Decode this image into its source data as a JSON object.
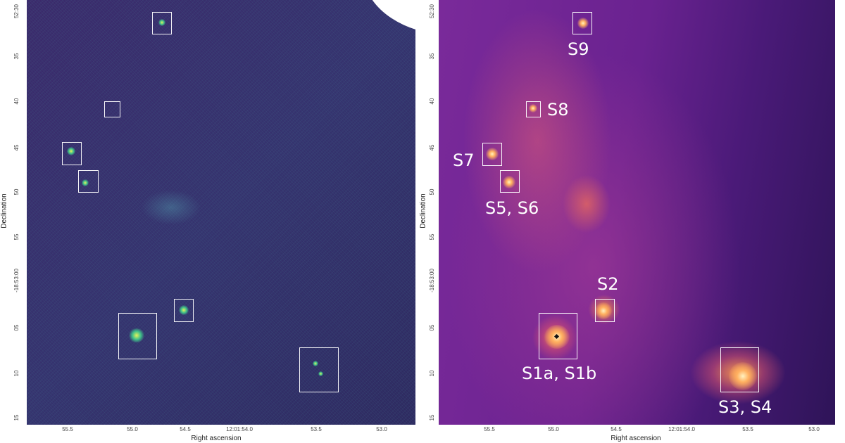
{
  "left_panel": {
    "ylabel": "Declination",
    "xlabel": "Right ascension",
    "y_ticks": [
      "52:30",
      "35",
      "40",
      "45",
      "50",
      "55",
      "-18:53:00",
      "05",
      "10",
      "15"
    ],
    "x_ticks": [
      "55.5",
      "55.0",
      "54.5",
      "12:01:54.0",
      "53.5",
      "53.0"
    ],
    "colormap": "viridis-like"
  },
  "right_panel": {
    "ylabel": "Declination",
    "xlabel": "Right ascension",
    "y_ticks": [
      "52:30",
      "35",
      "40",
      "45",
      "50",
      "55",
      "-18:53:00",
      "05",
      "10",
      "15"
    ],
    "x_ticks": [
      "55.5",
      "55.0",
      "54.5",
      "12:01:54.0",
      "53.5",
      "53.0"
    ],
    "colormap": "magma-like",
    "sources": [
      {
        "id": "s9",
        "label": "S9"
      },
      {
        "id": "s8",
        "label": "S8"
      },
      {
        "id": "s7",
        "label": "S7"
      },
      {
        "id": "s56",
        "label": "S5, S6"
      },
      {
        "id": "s2",
        "label": "S2"
      },
      {
        "id": "s1",
        "label": "S1a, S1b"
      },
      {
        "id": "s34",
        "label": "S3, S4"
      }
    ]
  },
  "colors": {
    "left_background": "#35336e",
    "right_background": "#6a2290",
    "box_outline": "#ffffff"
  }
}
